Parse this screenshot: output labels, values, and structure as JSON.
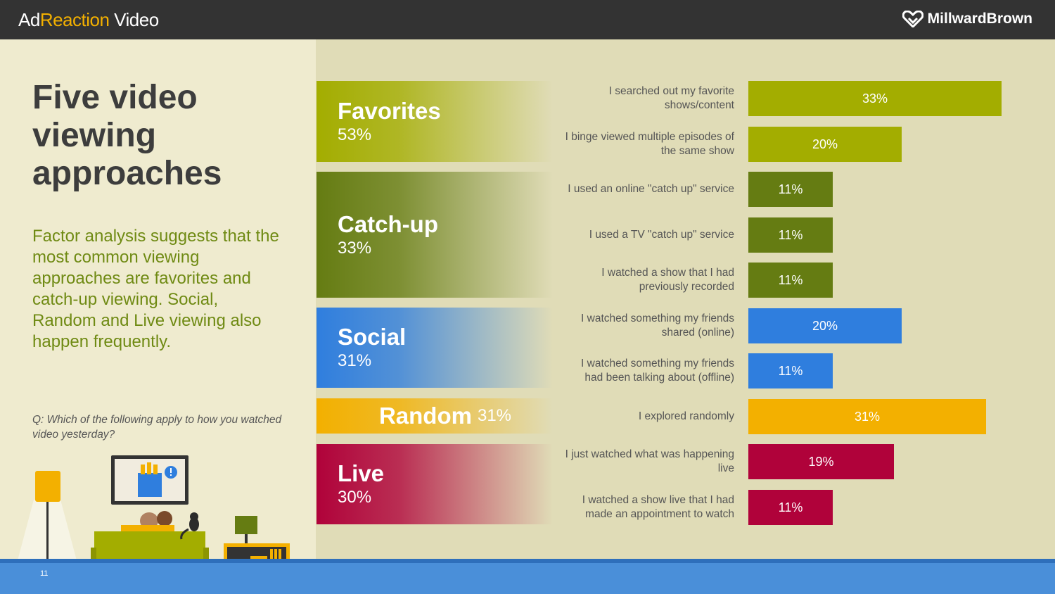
{
  "header": {
    "brand_part1": "Ad",
    "brand_part2": "Reaction",
    "brand_part3": " Video",
    "logo_text": "MillwardBrown"
  },
  "left": {
    "title": "Five video\nviewing\napproaches",
    "subtitle": "Factor analysis suggests that the most common viewing approaches are favorites and catch-up viewing. Social, Random and Live viewing also happen frequently.",
    "question": "Q: Which of the following apply to how you watched video yesterday?",
    "page_number": "11"
  },
  "colors": {
    "favorites": "#a3ad00",
    "catchup": "#657c12",
    "social": "#2f7ede",
    "random": "#f3b000",
    "live": "#b0023a"
  },
  "chart_data": {
    "type": "bar",
    "orientation": "horizontal",
    "xlim": [
      0,
      35
    ],
    "categories": [
      {
        "name": "Favorites",
        "value_label": "53%",
        "value": 53,
        "color": "#a3ad00"
      },
      {
        "name": "Catch-up",
        "value_label": "33%",
        "value": 33,
        "color": "#657c12"
      },
      {
        "name": "Social",
        "value_label": "31%",
        "value": 31,
        "color": "#2f7ede"
      },
      {
        "name": "Random",
        "value_label": "31%",
        "value": 31,
        "color": "#f3b000"
      },
      {
        "name": "Live",
        "value_label": "30%",
        "value": 30,
        "color": "#b0023a"
      }
    ],
    "items": [
      {
        "label": "I searched out my favorite shows/content",
        "value": 33,
        "value_label": "33%",
        "group": "Favorites",
        "color": "#a3ad00"
      },
      {
        "label": "I binge viewed multiple episodes of the same show",
        "value": 20,
        "value_label": "20%",
        "group": "Favorites",
        "color": "#a3ad00"
      },
      {
        "label": "I used an online \"catch up\" service",
        "value": 11,
        "value_label": "11%",
        "group": "Catch-up",
        "color": "#657c12"
      },
      {
        "label": "I used a TV \"catch up\" service",
        "value": 11,
        "value_label": "11%",
        "group": "Catch-up",
        "color": "#657c12"
      },
      {
        "label": "I watched a show that I had previously recorded",
        "value": 11,
        "value_label": "11%",
        "group": "Catch-up",
        "color": "#657c12"
      },
      {
        "label": "I watched something my friends shared (online)",
        "value": 20,
        "value_label": "20%",
        "group": "Social",
        "color": "#2f7ede"
      },
      {
        "label": "I watched something my friends had been talking about (offline)",
        "value": 11,
        "value_label": "11%",
        "group": "Social",
        "color": "#2f7ede"
      },
      {
        "label": "I explored randomly",
        "value": 31,
        "value_label": "31%",
        "group": "Random",
        "color": "#f3b000"
      },
      {
        "label": "I just watched what was happening live",
        "value": 19,
        "value_label": "19%",
        "group": "Live",
        "color": "#b0023a"
      },
      {
        "label": "I watched a show live that I had made an appointment to watch",
        "value": 11,
        "value_label": "11%",
        "group": "Live",
        "color": "#b0023a"
      }
    ]
  }
}
